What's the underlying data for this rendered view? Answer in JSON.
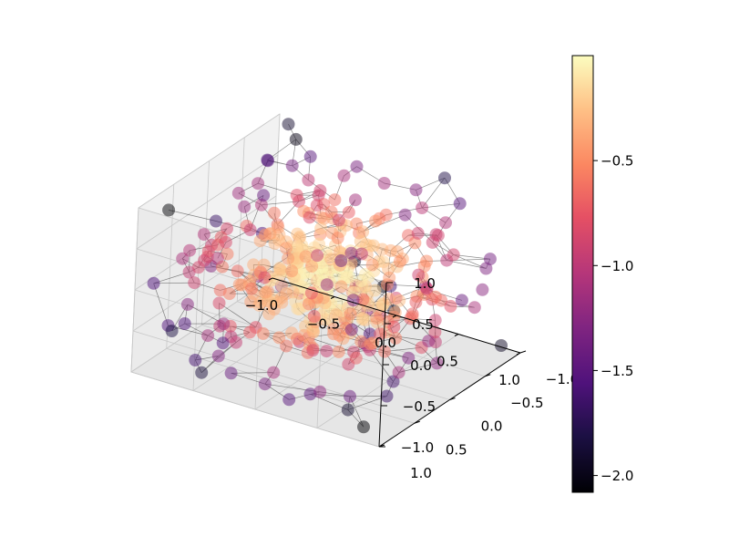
{
  "chart_data": {
    "type": "scatter",
    "subtype": "3d-scatter-with-voronoi-mesh",
    "title": "",
    "xlabel": "",
    "ylabel": "",
    "zlabel": "",
    "xlim": [
      -1.0,
      1.0
    ],
    "ylim": [
      -1.0,
      1.0
    ],
    "zlim": [
      -1.0,
      1.0
    ],
    "x_ticks": [
      "−1.0",
      "−0.5",
      "0.0",
      "0.5",
      "1.0"
    ],
    "y_ticks": [
      "−1.0",
      "−0.5",
      "0.0",
      "0.5",
      "1.0"
    ],
    "z_ticks": [
      "−1.0",
      "−0.5",
      "0.0",
      "0.5",
      "1.0"
    ],
    "colormap": "magma",
    "colorbar": {
      "min": -2.08,
      "max": 0.0,
      "ticks": [
        -2.0,
        -1.5,
        -1.0,
        -0.5
      ],
      "tick_labels": [
        "−2.0",
        "−1.5",
        "−1.0",
        "−0.5"
      ]
    },
    "color_value_description": "approx. -(x^2+y^2+z^2)",
    "point_count": 420,
    "marker_alpha": 0.5,
    "grid": true,
    "pane_color": "#f2f2f2",
    "mesh_color": "#000000",
    "sample_points": [
      {
        "x": 0.0,
        "y": 0.0,
        "z": 0.0,
        "c": -0.02
      },
      {
        "x": 0.95,
        "y": 0.95,
        "z": 0.9,
        "c": -2.0
      },
      {
        "x": -0.9,
        "y": -0.95,
        "z": 0.95,
        "c": -1.9
      },
      {
        "x": 0.9,
        "y": -0.9,
        "z": -0.9,
        "c": -1.95
      },
      {
        "x": -0.5,
        "y": 0.5,
        "z": -0.5,
        "c": -0.75
      },
      {
        "x": 0.3,
        "y": -0.2,
        "z": 0.4,
        "c": -0.29
      },
      {
        "x": -0.7,
        "y": 0.1,
        "z": 0.8,
        "c": -1.14
      },
      {
        "x": 0.6,
        "y": 0.7,
        "z": -0.2,
        "c": -0.89
      }
    ]
  }
}
